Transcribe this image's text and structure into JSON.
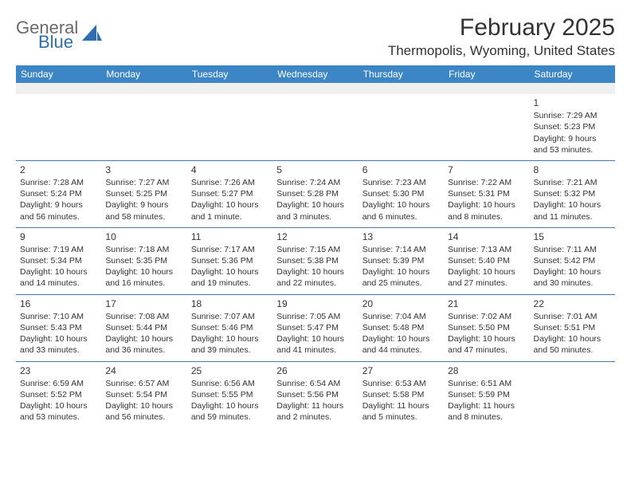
{
  "logo": {
    "word1": "General",
    "word2": "Blue"
  },
  "title": "February 2025",
  "location": "Thermopolis, Wyoming, United States",
  "colors": {
    "header_bg": "#3d86c6",
    "header_text": "#ffffff",
    "rule": "#4a7aa8",
    "blank_bg": "#f0f0f0",
    "text": "#333333",
    "logo_gray": "#6a6a6a",
    "logo_blue": "#2f6fb0"
  },
  "day_headers": [
    "Sunday",
    "Monday",
    "Tuesday",
    "Wednesday",
    "Thursday",
    "Friday",
    "Saturday"
  ],
  "weeks": [
    [
      null,
      null,
      null,
      null,
      null,
      null,
      {
        "n": "1",
        "sunrise": "7:29 AM",
        "sunset": "5:23 PM",
        "daylight": "9 hours and 53 minutes."
      }
    ],
    [
      {
        "n": "2",
        "sunrise": "7:28 AM",
        "sunset": "5:24 PM",
        "daylight": "9 hours and 56 minutes."
      },
      {
        "n": "3",
        "sunrise": "7:27 AM",
        "sunset": "5:25 PM",
        "daylight": "9 hours and 58 minutes."
      },
      {
        "n": "4",
        "sunrise": "7:26 AM",
        "sunset": "5:27 PM",
        "daylight": "10 hours and 1 minute."
      },
      {
        "n": "5",
        "sunrise": "7:24 AM",
        "sunset": "5:28 PM",
        "daylight": "10 hours and 3 minutes."
      },
      {
        "n": "6",
        "sunrise": "7:23 AM",
        "sunset": "5:30 PM",
        "daylight": "10 hours and 6 minutes."
      },
      {
        "n": "7",
        "sunrise": "7:22 AM",
        "sunset": "5:31 PM",
        "daylight": "10 hours and 8 minutes."
      },
      {
        "n": "8",
        "sunrise": "7:21 AM",
        "sunset": "5:32 PM",
        "daylight": "10 hours and 11 minutes."
      }
    ],
    [
      {
        "n": "9",
        "sunrise": "7:19 AM",
        "sunset": "5:34 PM",
        "daylight": "10 hours and 14 minutes."
      },
      {
        "n": "10",
        "sunrise": "7:18 AM",
        "sunset": "5:35 PM",
        "daylight": "10 hours and 16 minutes."
      },
      {
        "n": "11",
        "sunrise": "7:17 AM",
        "sunset": "5:36 PM",
        "daylight": "10 hours and 19 minutes."
      },
      {
        "n": "12",
        "sunrise": "7:15 AM",
        "sunset": "5:38 PM",
        "daylight": "10 hours and 22 minutes."
      },
      {
        "n": "13",
        "sunrise": "7:14 AM",
        "sunset": "5:39 PM",
        "daylight": "10 hours and 25 minutes."
      },
      {
        "n": "14",
        "sunrise": "7:13 AM",
        "sunset": "5:40 PM",
        "daylight": "10 hours and 27 minutes."
      },
      {
        "n": "15",
        "sunrise": "7:11 AM",
        "sunset": "5:42 PM",
        "daylight": "10 hours and 30 minutes."
      }
    ],
    [
      {
        "n": "16",
        "sunrise": "7:10 AM",
        "sunset": "5:43 PM",
        "daylight": "10 hours and 33 minutes."
      },
      {
        "n": "17",
        "sunrise": "7:08 AM",
        "sunset": "5:44 PM",
        "daylight": "10 hours and 36 minutes."
      },
      {
        "n": "18",
        "sunrise": "7:07 AM",
        "sunset": "5:46 PM",
        "daylight": "10 hours and 39 minutes."
      },
      {
        "n": "19",
        "sunrise": "7:05 AM",
        "sunset": "5:47 PM",
        "daylight": "10 hours and 41 minutes."
      },
      {
        "n": "20",
        "sunrise": "7:04 AM",
        "sunset": "5:48 PM",
        "daylight": "10 hours and 44 minutes."
      },
      {
        "n": "21",
        "sunrise": "7:02 AM",
        "sunset": "5:50 PM",
        "daylight": "10 hours and 47 minutes."
      },
      {
        "n": "22",
        "sunrise": "7:01 AM",
        "sunset": "5:51 PM",
        "daylight": "10 hours and 50 minutes."
      }
    ],
    [
      {
        "n": "23",
        "sunrise": "6:59 AM",
        "sunset": "5:52 PM",
        "daylight": "10 hours and 53 minutes."
      },
      {
        "n": "24",
        "sunrise": "6:57 AM",
        "sunset": "5:54 PM",
        "daylight": "10 hours and 56 minutes."
      },
      {
        "n": "25",
        "sunrise": "6:56 AM",
        "sunset": "5:55 PM",
        "daylight": "10 hours and 59 minutes."
      },
      {
        "n": "26",
        "sunrise": "6:54 AM",
        "sunset": "5:56 PM",
        "daylight": "11 hours and 2 minutes."
      },
      {
        "n": "27",
        "sunrise": "6:53 AM",
        "sunset": "5:58 PM",
        "daylight": "11 hours and 5 minutes."
      },
      {
        "n": "28",
        "sunrise": "6:51 AM",
        "sunset": "5:59 PM",
        "daylight": "11 hours and 8 minutes."
      },
      null
    ]
  ],
  "labels": {
    "sunrise": "Sunrise: ",
    "sunset": "Sunset: ",
    "daylight": "Daylight: "
  }
}
